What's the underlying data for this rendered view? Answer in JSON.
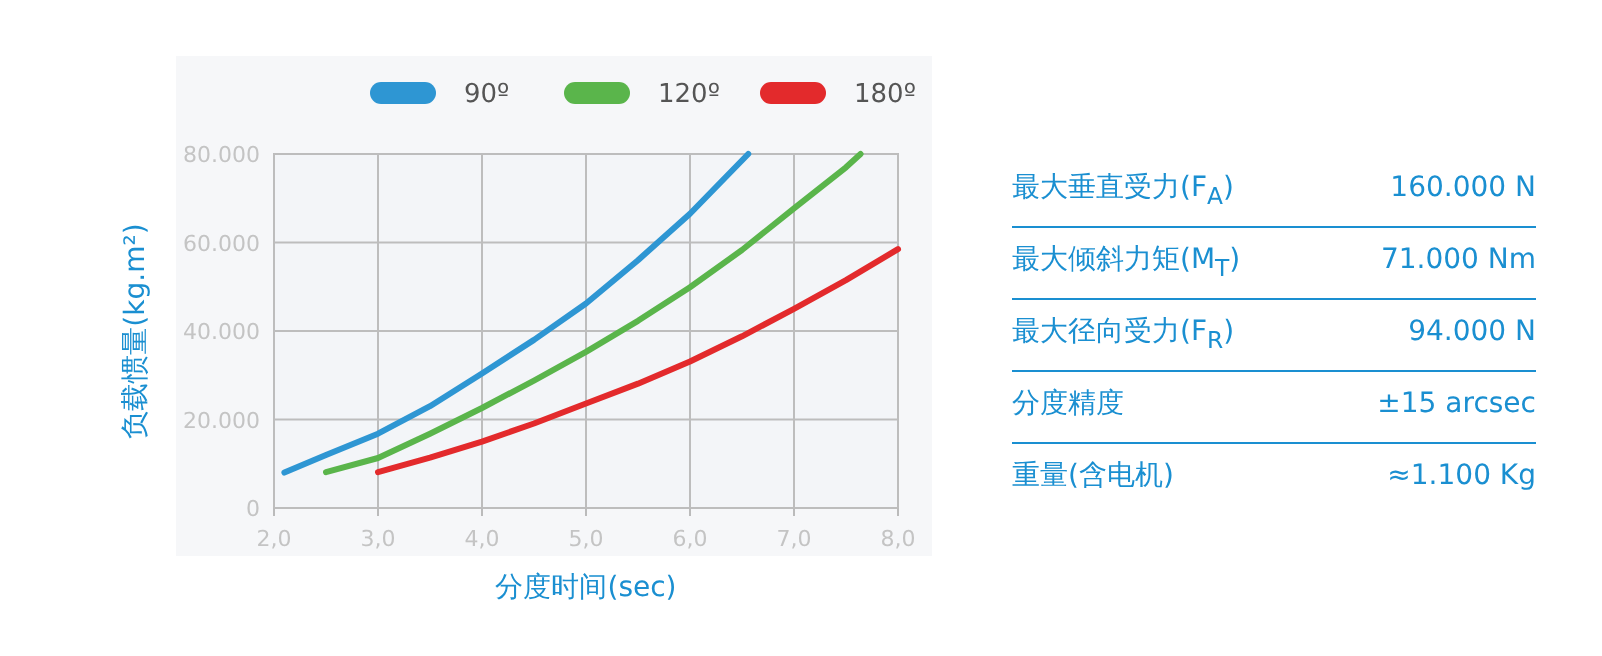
{
  "chart_data": [
    {
      "type": "line",
      "xlabel": "分度时间(sec)",
      "ylabel": "负载惯量(kg.m²)",
      "legend": "top",
      "grid": true,
      "marker": "none",
      "xlim": [
        2,
        8
      ],
      "ylim": [
        0,
        80000
      ],
      "xticks": [
        {
          "value": 2,
          "label": "2,0"
        },
        {
          "value": 3,
          "label": "3,0"
        },
        {
          "value": 4,
          "label": "4,0"
        },
        {
          "value": 5,
          "label": "5,0"
        },
        {
          "value": 6,
          "label": "6,0"
        },
        {
          "value": 7,
          "label": "7,0"
        },
        {
          "value": 8,
          "label": "8,0"
        }
      ],
      "yticks": [
        0,
        {
          "value": 20000,
          "label": "20.000"
        },
        {
          "value": 40000,
          "label": "40.000"
        },
        {
          "value": 60000,
          "label": "60.000"
        },
        {
          "value": 80000,
          "label": "80.000"
        }
      ],
      "series": [
        {
          "name": "90º",
          "color": "#2e96d3",
          "x": [
            2.1,
            2.5,
            3,
            3.5,
            4,
            4.5,
            5,
            5.5,
            6,
            6.56
          ],
          "values": [
            8000,
            12000,
            16800,
            23000,
            30400,
            38000,
            46200,
            56000,
            66500,
            80000
          ]
        },
        {
          "name": "120º",
          "color": "#5ab54b",
          "x": [
            2.5,
            3,
            3.5,
            4,
            4.5,
            5,
            5.5,
            6,
            6.5,
            7,
            7.5,
            7.64
          ],
          "values": [
            8100,
            11300,
            16800,
            22600,
            28800,
            35300,
            42300,
            49900,
            58300,
            67700,
            77000,
            80000
          ]
        },
        {
          "name": "180º",
          "color": "#e32a2c",
          "x": [
            3,
            3.5,
            4,
            4.5,
            5,
            5.5,
            6,
            6.5,
            7,
            7.5,
            8
          ],
          "values": [
            8100,
            11400,
            15000,
            19100,
            23600,
            28100,
            33100,
            38800,
            45000,
            51500,
            58500
          ]
        }
      ]
    },
    {
      "type": "other",
      "categories": [
        "最大垂直受力(F$_{A}$)",
        "最大倾斜力矩(M$_{T}$)",
        "最大径向受力(F$_{R}$)",
        "分度精度",
        "重量(含电机)"
      ],
      "annotations": [
        "160.000 N",
        "71.000 Nm",
        "94.000 N",
        "±15 arcsec",
        "≈1.100 Kg"
      ]
    }
  ]
}
